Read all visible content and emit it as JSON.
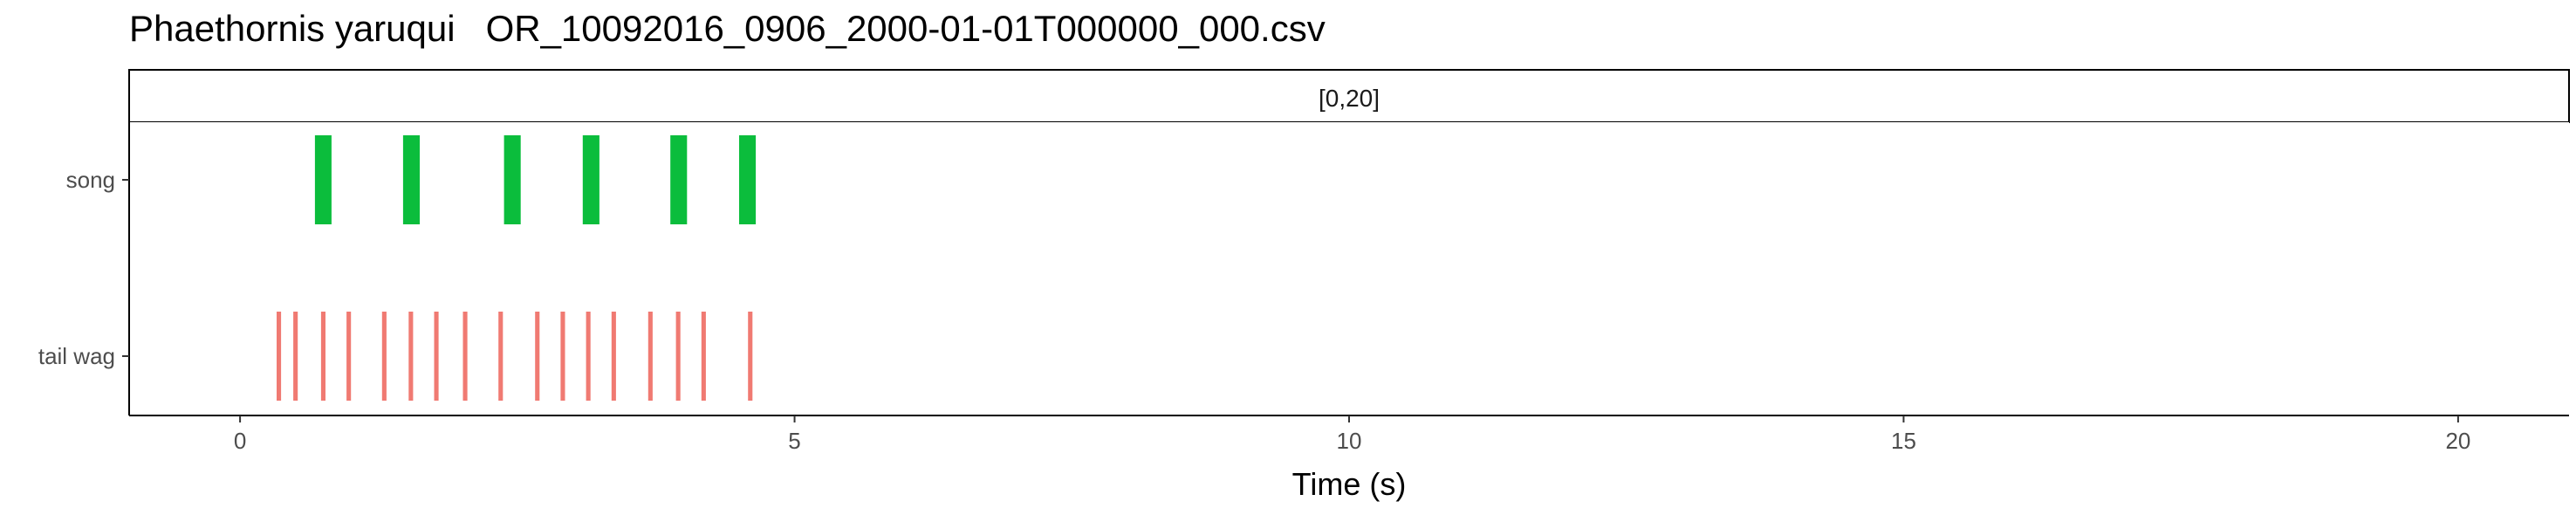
{
  "title": "Phaethornis yaruqui   OR_10092016_0906_2000-01-01T000000_000.csv",
  "chart_data": {
    "type": "event",
    "facet_label": "[0,20]",
    "xlabel": "Time (s)",
    "ylabel": "",
    "xlim": [
      -1,
      21
    ],
    "x_ticks": [
      0,
      5,
      10,
      15,
      20
    ],
    "x_tick_labels": [
      "0",
      "5",
      "10",
      "15",
      "20"
    ],
    "categories": [
      "song",
      "tail wag"
    ],
    "grid": false,
    "legend": "none",
    "series": [
      {
        "category": "song",
        "color": "#0bbd3c",
        "events": [
          {
            "start": 0.68,
            "end": 0.82
          },
          {
            "start": 1.47,
            "end": 1.62
          },
          {
            "start": 2.38,
            "end": 2.53
          },
          {
            "start": 3.09,
            "end": 3.24
          },
          {
            "start": 3.88,
            "end": 4.03
          },
          {
            "start": 4.5,
            "end": 4.65
          }
        ]
      },
      {
        "category": "tail wag",
        "color": "#f07a72",
        "events": [
          {
            "start": 0.33,
            "end": 0.37
          },
          {
            "start": 0.48,
            "end": 0.52
          },
          {
            "start": 0.73,
            "end": 0.77
          },
          {
            "start": 0.96,
            "end": 1.0
          },
          {
            "start": 1.28,
            "end": 1.32
          },
          {
            "start": 1.52,
            "end": 1.56
          },
          {
            "start": 1.75,
            "end": 1.79
          },
          {
            "start": 2.01,
            "end": 2.05
          },
          {
            "start": 2.33,
            "end": 2.37
          },
          {
            "start": 2.66,
            "end": 2.7
          },
          {
            "start": 2.89,
            "end": 2.93
          },
          {
            "start": 3.12,
            "end": 3.16
          },
          {
            "start": 3.35,
            "end": 3.39
          },
          {
            "start": 3.68,
            "end": 3.72
          },
          {
            "start": 3.93,
            "end": 3.97
          },
          {
            "start": 4.16,
            "end": 4.2
          },
          {
            "start": 4.58,
            "end": 4.62
          }
        ]
      }
    ]
  }
}
